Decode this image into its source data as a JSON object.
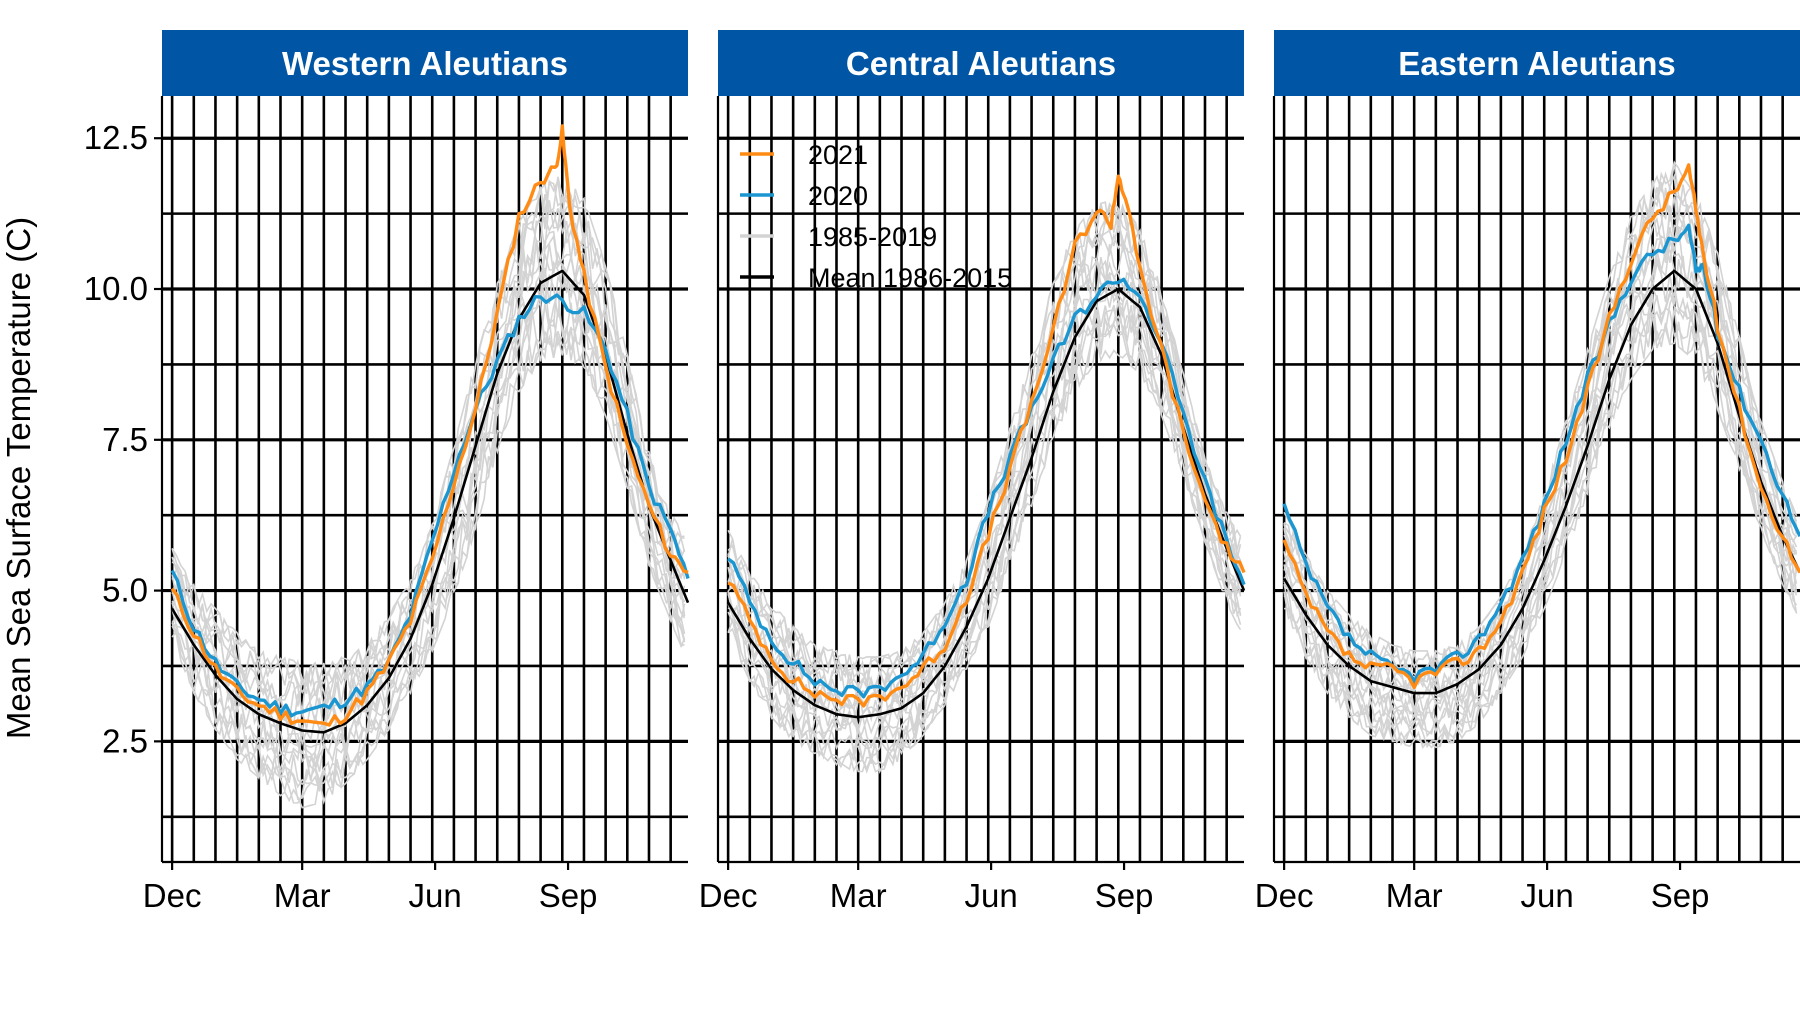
{
  "chart_data": {
    "type": "line",
    "ylabel": "Mean Sea Surface Temperature (C)",
    "xlabel": "",
    "ylim": [
      0.5,
      13.2
    ],
    "y_ticks": [
      "2.5",
      "5.0",
      "7.5",
      "10.0",
      "12.5"
    ],
    "x_range_days": [
      -7,
      357
    ],
    "x_ticks": [
      {
        "label": "Dec",
        "day": 0
      },
      {
        "label": "Mar",
        "day": 90
      },
      {
        "label": "Jun",
        "day": 182
      },
      {
        "label": "Sep",
        "day": 274
      }
    ],
    "grid": true,
    "legend_position": "top-left of middle panel",
    "colors": {
      "y2021": "#FF8B14",
      "y2020": "#1B96D1",
      "historic": "#D3D3D3",
      "mean": "#000000",
      "strip": "#0055A4"
    },
    "legend": [
      {
        "label": "2021",
        "color": "#FF8B14"
      },
      {
        "label": "2020",
        "color": "#1B96D1"
      },
      {
        "label": "1985-2019",
        "color": "#D3D3D3"
      },
      {
        "label": "Mean 1986-2015",
        "color": "#000000"
      }
    ],
    "panels": [
      {
        "title": "Western Aleutians",
        "series": [
          {
            "name": "Mean 1986-2015",
            "x": [
              0,
              15,
              30,
              45,
              60,
              75,
              90,
              105,
              120,
              135,
              150,
              165,
              180,
              195,
              210,
              225,
              240,
              255,
              270,
              285,
              300,
              315,
              330,
              345,
              357
            ],
            "y": [
              4.7,
              4.1,
              3.6,
              3.2,
              2.95,
              2.8,
              2.68,
              2.65,
              2.8,
              3.1,
              3.55,
              4.2,
              5.1,
              6.2,
              7.4,
              8.6,
              9.5,
              10.1,
              10.3,
              9.9,
              8.9,
              7.6,
              6.4,
              5.5,
              4.8
            ]
          },
          {
            "name": "2020",
            "x": [
              0,
              15,
              30,
              45,
              60,
              75,
              90,
              105,
              120,
              135,
              150,
              165,
              180,
              195,
              210,
              225,
              240,
              255,
              270,
              285,
              300,
              315,
              330,
              345,
              357
            ],
            "y": [
              5.3,
              4.4,
              3.8,
              3.4,
              3.2,
              3.05,
              3.0,
              3.05,
              3.2,
              3.4,
              3.8,
              4.6,
              5.8,
              7.0,
              8.0,
              8.8,
              9.5,
              9.9,
              9.8,
              9.6,
              9.0,
              7.9,
              6.7,
              6.0,
              5.2
            ]
          },
          {
            "name": "2021",
            "x": [
              0,
              15,
              30,
              45,
              60,
              75,
              90,
              105,
              120,
              135,
              150,
              165,
              180,
              195,
              210,
              225,
              240,
              255,
              265,
              270,
              275,
              285,
              300,
              315,
              330,
              345,
              357
            ],
            "y": [
              5.0,
              4.3,
              3.7,
              3.3,
              3.1,
              2.95,
              2.85,
              2.75,
              2.95,
              3.3,
              3.8,
              4.5,
              5.5,
              6.8,
              8.0,
              9.6,
              11.2,
              11.8,
              12.0,
              12.6,
              11.4,
              10.2,
              8.7,
              7.4,
              6.4,
              5.6,
              5.3
            ]
          },
          {
            "name": "1985-2019",
            "x": [
              0,
              15,
              30,
              45,
              60,
              75,
              90,
              105,
              120,
              135,
              150,
              165,
              180,
              195,
              210,
              225,
              240,
              255,
              270,
              285,
              300,
              315,
              330,
              345,
              357
            ],
            "lower": [
              4.2,
              3.3,
              2.7,
              2.2,
              1.9,
              1.6,
              1.4,
              1.5,
              1.8,
              2.2,
              2.7,
              3.3,
              4.0,
              4.9,
              6.0,
              7.3,
              8.3,
              8.8,
              8.9,
              8.7,
              7.9,
              6.7,
              5.4,
              4.5,
              3.8
            ],
            "upper": [
              5.7,
              5.1,
              4.7,
              4.3,
              4.0,
              3.9,
              3.8,
              3.8,
              3.9,
              4.1,
              4.6,
              5.2,
              6.1,
              7.4,
              8.8,
              10.1,
              11.1,
              11.7,
              11.9,
              11.5,
              10.4,
              8.9,
              7.3,
              6.3,
              5.8
            ]
          }
        ]
      },
      {
        "title": "Central Aleutians",
        "series": [
          {
            "name": "Mean 1986-2015",
            "x": [
              0,
              15,
              30,
              45,
              60,
              75,
              90,
              105,
              120,
              135,
              150,
              165,
              180,
              195,
              210,
              225,
              240,
              255,
              270,
              285,
              300,
              315,
              330,
              345,
              357
            ],
            "y": [
              4.8,
              4.2,
              3.7,
              3.35,
              3.1,
              2.95,
              2.9,
              2.95,
              3.05,
              3.3,
              3.75,
              4.4,
              5.2,
              6.2,
              7.2,
              8.3,
              9.2,
              9.8,
              10.0,
              9.7,
              8.9,
              7.7,
              6.6,
              5.7,
              5.0
            ]
          },
          {
            "name": "2020",
            "x": [
              0,
              15,
              30,
              45,
              60,
              75,
              90,
              105,
              120,
              135,
              150,
              165,
              180,
              195,
              210,
              225,
              240,
              255,
              270,
              285,
              300,
              315,
              330,
              345,
              357
            ],
            "y": [
              5.6,
              4.8,
              4.2,
              3.8,
              3.5,
              3.35,
              3.3,
              3.4,
              3.6,
              3.9,
              4.5,
              5.2,
              6.3,
              7.2,
              8.0,
              8.8,
              9.5,
              9.9,
              10.2,
              9.9,
              9.1,
              7.9,
              6.8,
              5.8,
              5.1
            ]
          },
          {
            "name": "2021",
            "x": [
              0,
              15,
              30,
              45,
              60,
              75,
              90,
              105,
              120,
              135,
              150,
              165,
              180,
              195,
              210,
              225,
              240,
              255,
              265,
              270,
              275,
              285,
              300,
              315,
              330,
              345,
              357
            ],
            "y": [
              5.2,
              4.5,
              3.9,
              3.5,
              3.3,
              3.2,
              3.15,
              3.25,
              3.4,
              3.7,
              4.1,
              4.9,
              5.9,
              7.0,
              8.1,
              9.3,
              10.7,
              11.3,
              11.1,
              11.9,
              11.5,
              10.3,
              9.0,
              7.6,
              6.5,
              5.7,
              5.3
            ]
          },
          {
            "name": "1985-2019",
            "x": [
              0,
              15,
              30,
              45,
              60,
              75,
              90,
              105,
              120,
              135,
              150,
              165,
              180,
              195,
              210,
              225,
              240,
              255,
              270,
              285,
              300,
              315,
              330,
              345,
              357
            ],
            "lower": [
              4.3,
              3.5,
              2.9,
              2.5,
              2.3,
              2.1,
              2.0,
              2.0,
              2.2,
              2.6,
              3.1,
              3.7,
              4.4,
              5.4,
              6.4,
              7.5,
              8.3,
              8.8,
              8.9,
              8.6,
              7.9,
              6.9,
              5.8,
              4.8,
              4.2
            ],
            "upper": [
              6.0,
              5.3,
              4.8,
              4.4,
              4.1,
              4.0,
              3.9,
              3.9,
              4.0,
              4.3,
              4.8,
              5.5,
              6.5,
              7.7,
              8.9,
              10.1,
              11.0,
              11.4,
              11.5,
              11.0,
              10.0,
              8.6,
              7.2,
              6.3,
              5.8
            ]
          }
        ]
      },
      {
        "title": "Eastern Aleutians",
        "series": [
          {
            "name": "Mean 1986-2015",
            "x": [
              0,
              15,
              30,
              45,
              60,
              75,
              90,
              105,
              120,
              135,
              150,
              165,
              180,
              195,
              210,
              225,
              240,
              255,
              270,
              285,
              300,
              315,
              330,
              345,
              357
            ],
            "y": [
              5.2,
              4.6,
              4.1,
              3.75,
              3.5,
              3.4,
              3.3,
              3.3,
              3.45,
              3.7,
              4.1,
              4.7,
              5.5,
              6.4,
              7.4,
              8.5,
              9.4,
              10.0,
              10.3,
              10.0,
              9.1,
              7.9,
              6.8,
              5.9,
              5.3
            ]
          },
          {
            "name": "2020",
            "x": [
              0,
              15,
              30,
              45,
              60,
              75,
              90,
              105,
              120,
              135,
              150,
              165,
              180,
              195,
              210,
              225,
              240,
              255,
              270,
              280,
              285,
              290,
              300,
              315,
              330,
              345,
              357
            ],
            "y": [
              6.4,
              5.4,
              4.7,
              4.2,
              3.9,
              3.7,
              3.6,
              3.7,
              3.9,
              4.2,
              4.8,
              5.5,
              6.4,
              7.5,
              8.5,
              9.4,
              10.2,
              10.6,
              10.8,
              11.0,
              10.3,
              10.4,
              9.3,
              8.3,
              7.5,
              6.6,
              5.9
            ]
          },
          {
            "name": "2021",
            "x": [
              0,
              15,
              30,
              45,
              60,
              75,
              90,
              105,
              120,
              135,
              150,
              165,
              180,
              195,
              210,
              225,
              240,
              255,
              270,
              280,
              285,
              290,
              300,
              315,
              330,
              345,
              357
            ],
            "y": [
              5.8,
              4.9,
              4.3,
              3.9,
              3.7,
              3.7,
              3.5,
              3.65,
              3.8,
              4.0,
              4.5,
              5.3,
              6.3,
              7.2,
              8.3,
              9.5,
              10.5,
              11.2,
              11.6,
              12.0,
              11.3,
              10.6,
              9.4,
              8.0,
              6.7,
              5.9,
              5.3
            ]
          },
          {
            "name": "1985-2019",
            "x": [
              0,
              15,
              30,
              45,
              60,
              75,
              90,
              105,
              120,
              135,
              150,
              165,
              180,
              195,
              210,
              225,
              240,
              255,
              270,
              285,
              300,
              315,
              330,
              345,
              357
            ],
            "lower": [
              4.7,
              3.9,
              3.3,
              2.9,
              2.6,
              2.5,
              2.4,
              2.4,
              2.5,
              2.8,
              3.3,
              3.9,
              4.7,
              5.6,
              6.6,
              7.7,
              8.5,
              9.0,
              9.1,
              8.8,
              8.0,
              7.0,
              6.0,
              5.1,
              4.5
            ],
            "upper": [
              6.3,
              5.6,
              5.0,
              4.6,
              4.3,
              4.1,
              4.0,
              4.0,
              4.1,
              4.4,
              4.9,
              5.6,
              6.6,
              7.8,
              9.0,
              10.2,
              11.2,
              11.8,
              12.1,
              11.6,
              10.6,
              9.2,
              7.8,
              6.8,
              6.1
            ]
          }
        ]
      }
    ]
  }
}
